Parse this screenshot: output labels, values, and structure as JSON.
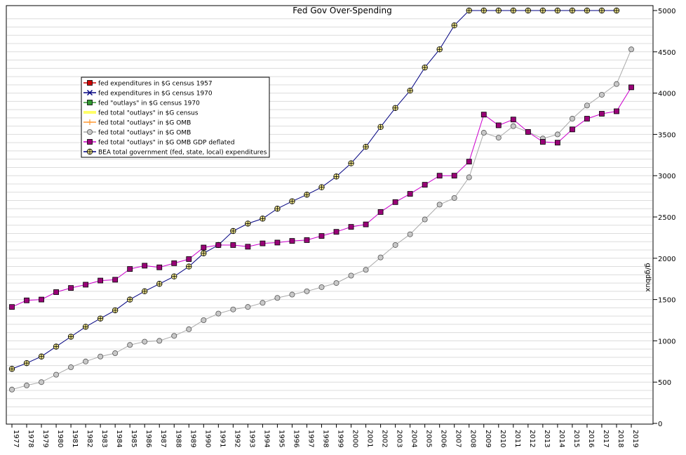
{
  "chart_data": {
    "type": "line",
    "title": "Fed Gov Over-Spending",
    "xlabel": "",
    "ylabel": "g/gdbux",
    "ylim": [
      0,
      5000
    ],
    "yticks": [
      0,
      500,
      1000,
      1500,
      2000,
      2500,
      3000,
      3500,
      4000,
      4500,
      5000
    ],
    "grid": true,
    "legend_position": "upper-left",
    "x": [
      1977,
      1978,
      1979,
      1980,
      1981,
      1982,
      1983,
      1984,
      1985,
      1986,
      1987,
      1988,
      1989,
      1990,
      1991,
      1992,
      1993,
      1994,
      1995,
      1996,
      1997,
      1998,
      1999,
      2000,
      2001,
      2002,
      2003,
      2004,
      2005,
      2006,
      2007,
      2008,
      2009,
      2010,
      2011,
      2012,
      2013,
      2014,
      2015,
      2016,
      2017,
      2018,
      2019
    ],
    "legend": [
      {
        "name": "fed expenditures in $G census 1957",
        "color": "#cc0000",
        "marker": "square"
      },
      {
        "name": "fed expenditures in $G census 1970",
        "color": "#000080",
        "marker": "x"
      },
      {
        "name": "fed \"outlays\" in $G census 1970",
        "color": "#339933",
        "marker": "square"
      },
      {
        "name": "fed total \"outlays\" in $G census",
        "color": "#ffff66",
        "marker": "line"
      },
      {
        "name": "fed total \"outlays\" in $G OMB",
        "color": "#ff9933",
        "marker": "plus"
      },
      {
        "name": "fed total \"outlays\" in $G OMB",
        "color": "#aaaaaa",
        "marker": "circle"
      },
      {
        "name": "fed total \"outlays\" in $G OMB GDP deflated",
        "color": "#cc00cc",
        "marker": "square"
      },
      {
        "name": "BEA total government (fed, state, local) expenditures",
        "color": "#000080",
        "marker": "circle-cross"
      }
    ],
    "series": [
      {
        "name": "BEA total government (fed, state, local) expenditures",
        "color": "#000080",
        "marker": "circle-cross",
        "marker_fill": "#f0e68c",
        "values": [
          660,
          730,
          810,
          930,
          1050,
          1170,
          1270,
          1370,
          1500,
          1600,
          1690,
          1780,
          1900,
          2060,
          2160,
          2330,
          2420,
          2480,
          2600,
          2690,
          2770,
          2860,
          2990,
          3150,
          3350,
          3590,
          3820,
          4030,
          4310,
          4530,
          4820,
          5000,
          5000,
          5000,
          5000,
          5000,
          5000,
          5000,
          5000,
          5000,
          5000,
          5000,
          null
        ]
      },
      {
        "name": "fed total \"outlays\" in $G OMB",
        "color": "#aaaaaa",
        "marker": "circle",
        "marker_fill": "#c8c8c8",
        "values": [
          410,
          460,
          500,
          590,
          680,
          750,
          810,
          850,
          950,
          990,
          1000,
          1060,
          1140,
          1250,
          1330,
          1380,
          1410,
          1460,
          1520,
          1560,
          1600,
          1650,
          1700,
          1790,
          1860,
          2010,
          2160,
          2290,
          2470,
          2650,
          2730,
          2980,
          3520,
          3460,
          3600,
          3530,
          3450,
          3500,
          3690,
          3850,
          3980,
          4110,
          4530
        ]
      },
      {
        "name": "fed total \"outlays\" in $G OMB GDP deflated",
        "color": "#cc00cc",
        "marker": "square",
        "marker_fill": "#990077",
        "values": [
          1410,
          1490,
          1500,
          1590,
          1640,
          1680,
          1730,
          1740,
          1870,
          1910,
          1890,
          1940,
          1990,
          2130,
          2160,
          2160,
          2140,
          2180,
          2190,
          2210,
          2220,
          2270,
          2320,
          2380,
          2410,
          2560,
          2680,
          2780,
          2890,
          3000,
          3000,
          3170,
          3740,
          3610,
          3680,
          3530,
          3410,
          3400,
          3560,
          3690,
          3750,
          3780,
          4070
        ]
      }
    ]
  }
}
